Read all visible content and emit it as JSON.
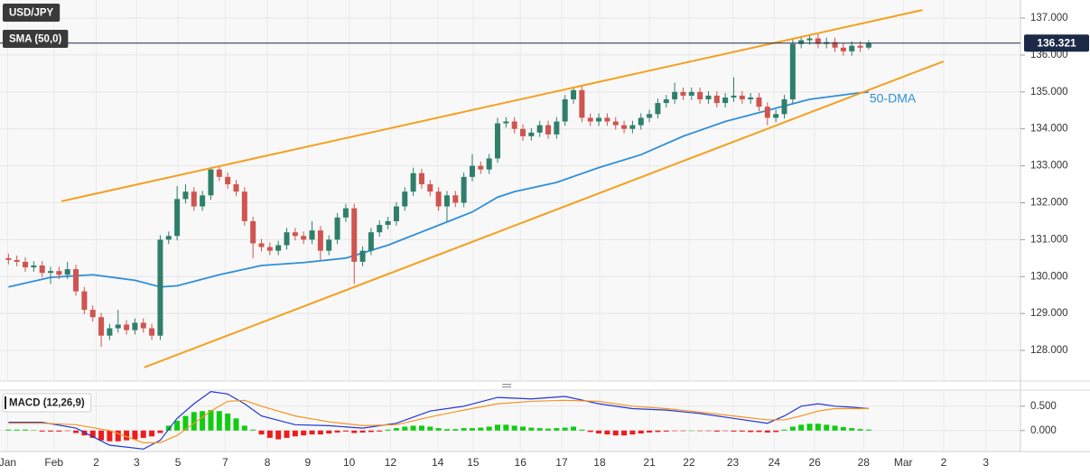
{
  "chart_data": [
    {
      "type": "candlestick",
      "title": "USD/JPY",
      "xlim": [
        -1,
        120
      ],
      "ylim": [
        127.17,
        137.49
      ],
      "yticks": [
        {
          "value": 128,
          "label": "128.000"
        },
        {
          "value": 129,
          "label": "129.000"
        },
        {
          "value": 130,
          "label": "130.000"
        },
        {
          "value": 131,
          "label": "131.000"
        },
        {
          "value": 132,
          "label": "132.000"
        },
        {
          "value": 133,
          "label": "133.000"
        },
        {
          "value": 134,
          "label": "134.000"
        },
        {
          "value": 135,
          "label": "135.000"
        },
        {
          "value": 136,
          "label": "136.000"
        },
        {
          "value": 137,
          "label": "137.000"
        }
      ],
      "grid": true,
      "up_color": "#2f7f6a",
      "down_color": "#d0544f",
      "last_price": 136.321,
      "last_price_color": "#1c2a48",
      "open": [
        130.5,
        130.45,
        130.4,
        130.25,
        130.3,
        130.1,
        130.15,
        130.05,
        130.2,
        129.6,
        129.1,
        128.9,
        128.4,
        128.6,
        128.7,
        128.55,
        128.75,
        128.6,
        128.4,
        131.0,
        131.1,
        132.1,
        132.3,
        131.9,
        132.2,
        132.9,
        132.7,
        132.5,
        132.3,
        131.5,
        130.9,
        130.8,
        130.7,
        130.85,
        131.2,
        131.1,
        131.0,
        131.25,
        130.7,
        131.0,
        131.6,
        131.85,
        130.4,
        130.7,
        131.2,
        131.4,
        131.5,
        131.9,
        132.3,
        132.8,
        132.5,
        132.3,
        131.9,
        132.2,
        132.0,
        132.7,
        133.0,
        132.9,
        133.2,
        134.15,
        134.2,
        134.0,
        133.8,
        133.9,
        134.1,
        133.85,
        134.2,
        134.8,
        135.05,
        134.3,
        134.2,
        134.3,
        134.2,
        134.1,
        134.0,
        134.1,
        134.3,
        134.4,
        134.7,
        134.8,
        135.0,
        134.9,
        135.0,
        134.8,
        134.9,
        134.7,
        134.85,
        134.9,
        134.8,
        134.85,
        134.6,
        134.3,
        134.4,
        134.8,
        136.3,
        136.4,
        136.45,
        136.3,
        136.35,
        136.2,
        136.1,
        136.25,
        136.2
      ],
      "high": [
        130.62,
        130.57,
        130.52,
        130.42,
        130.42,
        130.27,
        130.27,
        130.4,
        130.32,
        129.72,
        129.22,
        129.02,
        128.72,
        129.1,
        128.82,
        128.87,
        128.87,
        128.72,
        131.12,
        131.22,
        132.45,
        132.5,
        132.42,
        132.32,
        132.95,
        133.02,
        132.82,
        132.62,
        132.42,
        131.62,
        131.02,
        130.92,
        130.97,
        131.32,
        131.32,
        131.22,
        131.5,
        131.37,
        131.12,
        131.72,
        131.97,
        131.97,
        130.82,
        131.32,
        131.52,
        131.62,
        132.02,
        132.42,
        132.95,
        132.92,
        132.62,
        132.42,
        132.32,
        132.32,
        132.82,
        133.32,
        133.12,
        133.32,
        134.3,
        134.32,
        134.32,
        134.12,
        134.02,
        134.22,
        134.22,
        134.32,
        134.92,
        135.12,
        135.17,
        134.42,
        134.42,
        134.42,
        134.32,
        134.22,
        134.22,
        134.42,
        134.52,
        134.82,
        134.92,
        135.25,
        135.12,
        135.12,
        135.12,
        135.02,
        135.02,
        134.97,
        135.4,
        135.02,
        134.97,
        134.97,
        134.72,
        134.52,
        134.92,
        136.42,
        136.52,
        136.57,
        136.57,
        136.47,
        136.47,
        136.32,
        136.37,
        136.37,
        136.4
      ],
      "low": [
        130.33,
        130.28,
        130.13,
        130.13,
        129.98,
        129.8,
        129.93,
        129.93,
        129.48,
        128.98,
        128.78,
        128.1,
        128.28,
        128.48,
        128.43,
        128.43,
        128.48,
        128.28,
        128.28,
        130.88,
        130.98,
        131.98,
        131.78,
        131.78,
        132.08,
        132.58,
        132.38,
        132.18,
        131.38,
        130.5,
        130.68,
        130.58,
        130.58,
        130.73,
        130.98,
        130.88,
        130.88,
        130.45,
        130.58,
        130.88,
        131.48,
        129.8,
        130.28,
        130.58,
        131.08,
        131.28,
        131.38,
        131.78,
        132.18,
        132.38,
        132.18,
        131.78,
        131.5,
        131.88,
        131.88,
        132.58,
        132.78,
        132.78,
        133.08,
        134.03,
        133.88,
        133.68,
        133.68,
        133.78,
        133.73,
        133.73,
        134.08,
        134.68,
        134.18,
        134.08,
        134.08,
        134.08,
        133.98,
        133.88,
        133.88,
        133.98,
        134.18,
        134.28,
        134.58,
        134.68,
        134.78,
        134.78,
        134.68,
        134.68,
        134.58,
        134.58,
        134.73,
        134.68,
        134.68,
        134.48,
        134.1,
        134.18,
        134.28,
        134.68,
        136.18,
        136.28,
        136.18,
        136.18,
        136.08,
        135.98,
        135.98,
        136.08,
        136.15
      ],
      "close": [
        130.45,
        130.4,
        130.25,
        130.3,
        130.1,
        130.15,
        130.05,
        130.2,
        129.6,
        129.1,
        128.9,
        128.4,
        128.6,
        128.7,
        128.55,
        128.75,
        128.6,
        128.4,
        131.0,
        131.1,
        132.1,
        132.3,
        131.9,
        132.2,
        132.9,
        132.7,
        132.5,
        132.3,
        131.5,
        130.9,
        130.8,
        130.7,
        130.85,
        131.2,
        131.1,
        131.0,
        131.25,
        130.7,
        131.0,
        131.6,
        131.85,
        130.4,
        130.7,
        131.2,
        131.4,
        131.5,
        131.9,
        132.3,
        132.8,
        132.5,
        132.3,
        131.9,
        132.2,
        132.0,
        132.7,
        133.0,
        132.9,
        133.2,
        134.15,
        134.2,
        134.0,
        133.8,
        133.9,
        134.1,
        133.85,
        134.2,
        134.8,
        135.05,
        134.3,
        134.2,
        134.3,
        134.2,
        134.1,
        134.0,
        134.1,
        134.3,
        134.4,
        134.7,
        134.8,
        135.0,
        134.9,
        135.0,
        134.8,
        134.9,
        134.7,
        134.85,
        134.9,
        134.8,
        134.85,
        134.6,
        134.3,
        134.4,
        134.8,
        136.3,
        136.4,
        136.45,
        136.3,
        136.35,
        136.2,
        136.1,
        136.25,
        136.2,
        136.321
      ],
      "lines": [
        {
          "name": "SMA (50,0)",
          "color": "#2f8fd8",
          "x": [
            0,
            5,
            10,
            15,
            18,
            20,
            25,
            30,
            35,
            40,
            45,
            50,
            55,
            58,
            60,
            65,
            70,
            75,
            80,
            85,
            90,
            95,
            100,
            102
          ],
          "values": [
            129.72,
            129.98,
            130.05,
            129.9,
            129.72,
            129.75,
            130.05,
            130.3,
            130.38,
            130.5,
            130.85,
            131.3,
            131.75,
            132.15,
            132.3,
            132.55,
            132.95,
            133.3,
            133.8,
            134.2,
            134.5,
            134.8,
            134.95,
            135.0
          ]
        }
      ],
      "trendlines": [
        {
          "color": "#f5a020",
          "x": [
            6.3,
            108.4
          ],
          "values": [
            132.04,
            137.22
          ]
        },
        {
          "color": "#f5a020",
          "x": [
            16.1,
            110.9
          ],
          "values": [
            127.54,
            135.83
          ]
        }
      ],
      "annotations": [
        "50-DMA"
      ]
    },
    {
      "type": "macd",
      "title": "MACD (12,26,9)",
      "xlim": [
        -1,
        120
      ],
      "ylim": [
        -0.43,
        0.83
      ],
      "yticks": [
        {
          "value": 0.5,
          "label": "0.500"
        },
        {
          "value": 0,
          "label": "0.000"
        }
      ],
      "xticks": [
        {
          "value": -0.1,
          "label": "Jan"
        },
        {
          "value": 5.4,
          "label": "Feb"
        },
        {
          "value": 10.4,
          "label": "2"
        },
        {
          "value": 15.2,
          "label": "3"
        },
        {
          "value": 20.1,
          "label": "5"
        },
        {
          "value": 25.7,
          "label": "7"
        },
        {
          "value": 30.7,
          "label": "8"
        },
        {
          "value": 35.5,
          "label": "9"
        },
        {
          "value": 40.4,
          "label": "10"
        },
        {
          "value": 45.3,
          "label": "12"
        },
        {
          "value": 50.9,
          "label": "14"
        },
        {
          "value": 55.1,
          "label": "15"
        },
        {
          "value": 60.7,
          "label": "16"
        },
        {
          "value": 65.6,
          "label": "17"
        },
        {
          "value": 70.1,
          "label": "18"
        },
        {
          "value": 76.0,
          "label": "21"
        },
        {
          "value": 80.7,
          "label": "22"
        },
        {
          "value": 85.9,
          "label": "23"
        },
        {
          "value": 90.8,
          "label": "24"
        },
        {
          "value": 95.6,
          "label": "26"
        },
        {
          "value": 101.4,
          "label": "28"
        },
        {
          "value": 106.1,
          "label": "Mar"
        },
        {
          "value": 110.9,
          "label": "2"
        },
        {
          "value": 115.9,
          "label": "3"
        }
      ],
      "up_color": "#12cc12",
      "down_color": "#ee1c1c",
      "histogram": [
        0.02,
        0.02,
        0.02,
        0.01,
        -0.02,
        -0.02,
        -0.02,
        -0.01,
        -0.05,
        -0.1,
        -0.15,
        -0.2,
        -0.22,
        -0.22,
        -0.2,
        -0.18,
        -0.15,
        -0.12,
        -0.05,
        0.1,
        0.2,
        0.3,
        0.38,
        0.4,
        0.42,
        0.4,
        0.35,
        0.25,
        0.1,
        0.02,
        -0.08,
        -0.15,
        -0.18,
        -0.15,
        -0.12,
        -0.1,
        -0.08,
        -0.08,
        -0.06,
        -0.04,
        -0.02,
        -0.05,
        -0.04,
        -0.03,
        -0.02,
        0.02,
        0.05,
        0.08,
        0.1,
        0.1,
        0.08,
        0.05,
        0.03,
        0.03,
        0.05,
        0.05,
        0.06,
        0.08,
        0.12,
        0.12,
        0.1,
        0.08,
        0.06,
        0.05,
        0.04,
        0.05,
        0.06,
        0.08,
        0.02,
        -0.03,
        -0.06,
        -0.08,
        -0.1,
        -0.1,
        -0.08,
        -0.06,
        -0.04,
        -0.03,
        -0.02,
        -0.01,
        -0.01,
        0,
        -0.01,
        -0.01,
        -0.02,
        -0.01,
        -0.02,
        -0.02,
        -0.03,
        -0.03,
        -0.04,
        -0.03,
        0.02,
        0.08,
        0.12,
        0.14,
        0.14,
        0.12,
        0.1,
        0.07,
        0.05,
        0.03,
        0.02
      ],
      "series": [
        {
          "color": "#2036d8",
          "x": [
            0,
            4,
            8,
            12,
            16,
            18,
            20,
            22,
            24,
            26,
            28,
            30,
            34,
            38,
            42,
            46,
            50,
            54,
            58,
            62,
            66,
            70,
            74,
            78,
            82,
            86,
            90,
            92,
            94,
            96,
            98,
            100,
            102
          ],
          "values": [
            0.17,
            0.17,
            0.05,
            -0.3,
            -0.38,
            -0.2,
            0.25,
            0.55,
            0.8,
            0.75,
            0.55,
            0.3,
            0.12,
            0.1,
            0.05,
            0.15,
            0.4,
            0.5,
            0.68,
            0.65,
            0.7,
            0.55,
            0.45,
            0.42,
            0.35,
            0.25,
            0.15,
            0.3,
            0.5,
            0.55,
            0.5,
            0.48,
            0.45
          ]
        },
        {
          "color": "#f7931e",
          "x": [
            0,
            4,
            8,
            12,
            16,
            18,
            20,
            22,
            24,
            26,
            28,
            30,
            34,
            38,
            42,
            46,
            50,
            54,
            58,
            62,
            66,
            70,
            74,
            78,
            82,
            86,
            90,
            92,
            94,
            96,
            98,
            100,
            102
          ],
          "values": [
            0.15,
            0.15,
            0.12,
            0.0,
            -0.25,
            -0.25,
            -0.1,
            0.15,
            0.4,
            0.6,
            0.62,
            0.5,
            0.3,
            0.18,
            0.1,
            0.12,
            0.28,
            0.42,
            0.55,
            0.6,
            0.62,
            0.6,
            0.5,
            0.45,
            0.38,
            0.3,
            0.22,
            0.22,
            0.3,
            0.4,
            0.45,
            0.45,
            0.45
          ]
        }
      ]
    }
  ]
}
